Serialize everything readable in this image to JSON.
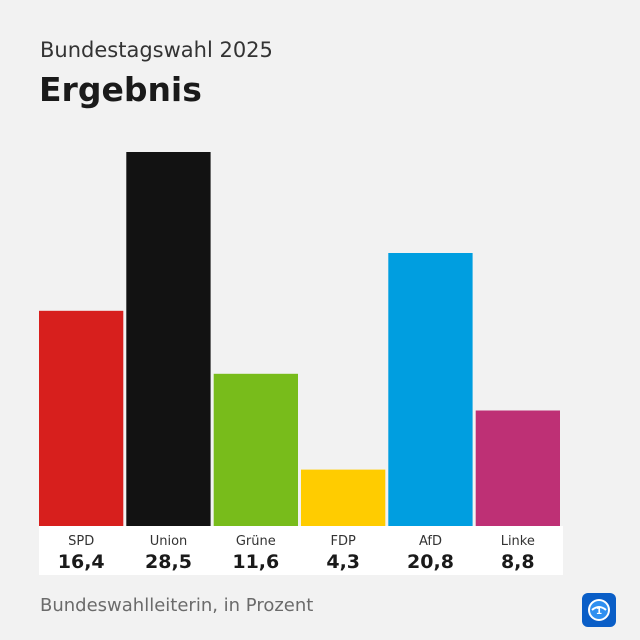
{
  "header": {
    "subtitle": "Bundestagswahl 2025",
    "title": "Ergebnis"
  },
  "footer": {
    "source": "Bundeswahlleiterin, in Prozent"
  },
  "logo": {
    "icon": "tagesschau-logo-icon",
    "color": "#0a5ec7"
  },
  "chart_data": {
    "type": "bar",
    "title": "",
    "xlabel": "",
    "ylabel": "",
    "ylim": [
      0,
      28.5
    ],
    "grid": false,
    "categories": [
      "SPD",
      "Union",
      "Grüne",
      "FDP",
      "AfD",
      "Linke"
    ],
    "values": [
      16.4,
      28.5,
      11.6,
      4.3,
      20.8,
      8.8
    ],
    "value_labels": [
      "16,4",
      "28,5",
      "11,6",
      "4,3",
      "20,8",
      "8,8"
    ],
    "colors": [
      "#d71f1d",
      "#121212",
      "#78bc1b",
      "#ffcc00",
      "#009ee0",
      "#be3075"
    ]
  }
}
